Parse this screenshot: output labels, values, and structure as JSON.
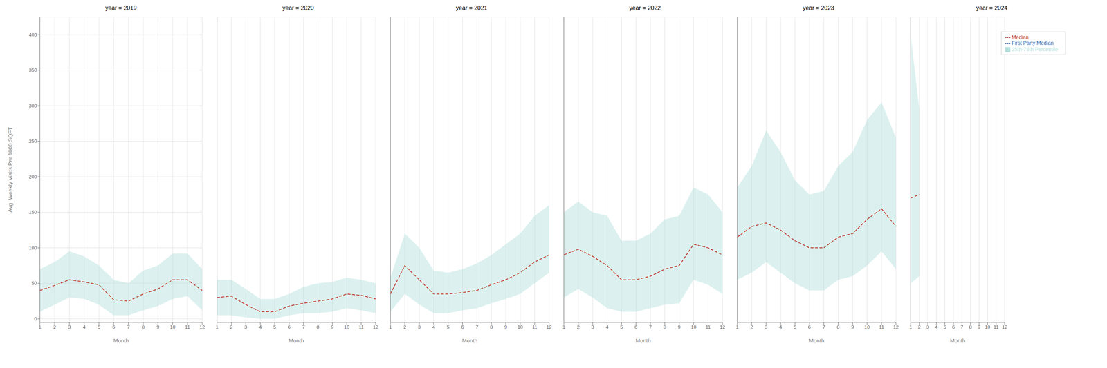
{
  "chart_data": [
    {
      "type": "line",
      "title": "year = 2019",
      "xlabel": "Month",
      "ylabel": "Avg. Weekly Visits Per 1000 SQFT",
      "x": [
        1,
        2,
        3,
        4,
        5,
        6,
        7,
        8,
        9,
        10,
        11,
        12
      ],
      "xlim": [
        1,
        12
      ],
      "xticks": [
        1,
        2,
        3,
        4,
        5,
        6,
        7,
        8,
        9,
        10,
        11,
        12
      ],
      "ylim": [
        -5,
        425
      ],
      "yticks": [
        0,
        50,
        100,
        150,
        200,
        250,
        300,
        350,
        400
      ],
      "grid": true,
      "series": [
        {
          "name": "Median",
          "type": "line",
          "color": "#c0392b",
          "line_style": "dashed",
          "values": [
            40,
            47,
            55,
            52,
            48,
            27,
            25,
            35,
            42,
            55,
            55,
            40
          ]
        },
        {
          "name": "25th-75th Percentile",
          "type": "area",
          "color": "#b2dfdb",
          "lower": [
            10,
            20,
            30,
            28,
            20,
            5,
            5,
            12,
            18,
            28,
            32,
            12
          ],
          "upper": [
            70,
            80,
            95,
            88,
            75,
            55,
            50,
            68,
            75,
            92,
            92,
            70
          ]
        }
      ]
    },
    {
      "type": "line",
      "title": "year = 2020",
      "xlabel": "Month",
      "x": [
        1,
        2,
        3,
        4,
        5,
        6,
        7,
        8,
        9,
        10,
        11,
        12
      ],
      "xlim": [
        1,
        12
      ],
      "xticks": [
        1,
        2,
        3,
        4,
        5,
        6,
        7,
        8,
        9,
        10,
        11,
        12
      ],
      "ylim": [
        -5,
        425
      ],
      "yticks": [
        0,
        50,
        100,
        150,
        200,
        250,
        300,
        350,
        400
      ],
      "grid": true,
      "tick_labels": "x",
      "series": [
        {
          "name": "Median",
          "type": "line",
          "color": "#c0392b",
          "line_style": "dashed",
          "values": [
            30,
            32,
            20,
            10,
            10,
            18,
            22,
            25,
            28,
            35,
            33,
            28
          ]
        },
        {
          "name": "25th-75th Percentile",
          "type": "area",
          "color": "#b2dfdb",
          "lower": [
            5,
            5,
            2,
            0,
            0,
            5,
            8,
            8,
            10,
            15,
            12,
            8
          ],
          "upper": [
            55,
            55,
            42,
            28,
            28,
            35,
            45,
            50,
            52,
            58,
            55,
            50
          ]
        }
      ]
    },
    {
      "type": "line",
      "title": "year = 2021",
      "xlabel": "Month",
      "x": [
        1,
        2,
        3,
        4,
        5,
        6,
        7,
        8,
        9,
        10,
        11,
        12
      ],
      "xlim": [
        1,
        12
      ],
      "xticks": [
        1,
        2,
        3,
        4,
        5,
        6,
        7,
        8,
        9,
        10,
        11,
        12
      ],
      "ylim": [
        -5,
        425
      ],
      "yticks": [
        0,
        50,
        100,
        150,
        200,
        250,
        300,
        350,
        400
      ],
      "grid": true,
      "tick_labels": "x",
      "series": [
        {
          "name": "Median",
          "type": "line",
          "color": "#c0392b",
          "line_style": "dashed",
          "values": [
            35,
            75,
            55,
            35,
            35,
            37,
            40,
            48,
            55,
            65,
            80,
            90
          ]
        },
        {
          "name": "25th-75th Percentile",
          "type": "area",
          "color": "#b2dfdb",
          "lower": [
            10,
            35,
            20,
            8,
            8,
            12,
            15,
            22,
            28,
            35,
            50,
            65
          ],
          "upper": [
            58,
            120,
            100,
            68,
            65,
            70,
            78,
            90,
            105,
            120,
            145,
            160
          ]
        }
      ]
    },
    {
      "type": "line",
      "title": "year = 2022",
      "xlabel": "Month",
      "x": [
        1,
        2,
        3,
        4,
        5,
        6,
        7,
        8,
        9,
        10,
        11,
        12
      ],
      "xlim": [
        1,
        12
      ],
      "xticks": [
        1,
        2,
        3,
        4,
        5,
        6,
        7,
        8,
        9,
        10,
        11,
        12
      ],
      "ylim": [
        -5,
        425
      ],
      "yticks": [
        0,
        50,
        100,
        150,
        200,
        250,
        300,
        350,
        400
      ],
      "grid": true,
      "tick_labels": "x",
      "series": [
        {
          "name": "Median",
          "type": "line",
          "color": "#c0392b",
          "line_style": "dashed",
          "values": [
            90,
            98,
            88,
            75,
            55,
            55,
            60,
            70,
            75,
            105,
            100,
            90
          ]
        },
        {
          "name": "25th-75th Percentile",
          "type": "area",
          "color": "#b2dfdb",
          "lower": [
            30,
            42,
            30,
            15,
            10,
            10,
            15,
            20,
            22,
            55,
            48,
            35
          ],
          "upper": [
            150,
            165,
            150,
            145,
            110,
            110,
            120,
            140,
            145,
            185,
            175,
            150
          ]
        }
      ]
    },
    {
      "type": "line",
      "title": "year = 2023",
      "xlabel": "Month",
      "x": [
        1,
        2,
        3,
        4,
        5,
        6,
        7,
        8,
        9,
        10,
        11,
        12
      ],
      "xlim": [
        1,
        12
      ],
      "xticks": [
        1,
        2,
        3,
        4,
        5,
        6,
        7,
        8,
        9,
        10,
        11,
        12
      ],
      "ylim": [
        -5,
        425
      ],
      "yticks": [
        0,
        50,
        100,
        150,
        200,
        250,
        300,
        350,
        400
      ],
      "grid": true,
      "tick_labels": "x",
      "series": [
        {
          "name": "Median",
          "type": "line",
          "color": "#c0392b",
          "line_style": "dashed",
          "values": [
            115,
            130,
            135,
            125,
            110,
            100,
            100,
            115,
            120,
            140,
            155,
            130
          ]
        },
        {
          "name": "25th-75th Percentile",
          "type": "area",
          "color": "#b2dfdb",
          "lower": [
            55,
            65,
            80,
            65,
            50,
            40,
            40,
            55,
            60,
            75,
            95,
            70
          ],
          "upper": [
            185,
            215,
            265,
            235,
            195,
            175,
            180,
            215,
            235,
            280,
            305,
            255
          ]
        }
      ]
    },
    {
      "type": "line",
      "title": "year = 2024",
      "xlabel": "Month",
      "x": [
        1,
        2,
        3,
        4,
        5,
        6,
        7,
        8,
        9,
        10,
        11,
        12
      ],
      "xlim": [
        1,
        12
      ],
      "xticks": [
        1,
        2,
        3,
        4,
        5,
        6,
        7,
        8,
        9,
        10,
        11,
        12
      ],
      "ylim": [
        -5,
        425
      ],
      "yticks": [
        0,
        50,
        100,
        150,
        200,
        250,
        300,
        350,
        400
      ],
      "grid": true,
      "tick_labels": "x",
      "legend": "upper right",
      "series": [
        {
          "name": "Median",
          "type": "line",
          "color": "#c0392b",
          "line_style": "dashed",
          "values": [
            170,
            175,
            null,
            null,
            null,
            null,
            null,
            null,
            null,
            null,
            null,
            null
          ]
        },
        {
          "name": "First Party Median",
          "type": "line",
          "color": "#3a6fb5",
          "line_style": "dashed",
          "values": [
            null,
            null,
            null,
            null,
            null,
            null,
            null,
            null,
            null,
            null,
            null,
            null
          ]
        },
        {
          "name": "25th-75th Percentile",
          "type": "area",
          "color": "#b2dfdb",
          "lower": [
            50,
            60,
            null,
            null,
            null,
            null,
            null,
            null,
            null,
            null,
            null,
            null
          ],
          "upper": [
            400,
            295,
            null,
            null,
            null,
            null,
            null,
            null,
            null,
            null,
            null,
            null
          ]
        }
      ]
    }
  ]
}
